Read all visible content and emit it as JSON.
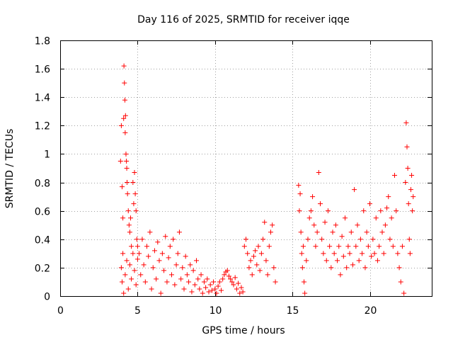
{
  "chart_data": {
    "type": "scatter",
    "title": "Day 116 of 2025, SRMTID for receiver iqqe",
    "xlabel": "GPS time / hours",
    "ylabel": "SRMTID / TECUs",
    "xlim": [
      0,
      24
    ],
    "ylim": [
      0,
      1.8
    ],
    "x_ticks": [
      0,
      5,
      10,
      15,
      20
    ],
    "x_tick_labels": [
      "0",
      "5",
      "10",
      "15",
      "20"
    ],
    "y_ticks": [
      0,
      0.2,
      0.4,
      0.6,
      0.8,
      1.0,
      1.2,
      1.4,
      1.6,
      1.8
    ],
    "y_tick_labels": [
      "0",
      "0.2",
      "0.4",
      "0.6",
      "0.8",
      "1",
      "1.2",
      "1.4",
      "1.6",
      "1.8"
    ],
    "grid": true,
    "marker": "plus",
    "color": "#ff0000",
    "series": [
      {
        "name": "SRMTID",
        "points": [
          [
            3.9,
            0.95
          ],
          [
            3.95,
            1.2
          ],
          [
            4.0,
            0.77
          ],
          [
            4.05,
            0.55
          ],
          [
            4.1,
            1.25
          ],
          [
            4.12,
            1.62
          ],
          [
            4.15,
            1.5
          ],
          [
            4.18,
            1.38
          ],
          [
            4.2,
            1.15
          ],
          [
            4.22,
            1.27
          ],
          [
            4.25,
            1.0
          ],
          [
            4.28,
            0.95
          ],
          [
            4.3,
            0.9
          ],
          [
            4.32,
            0.8
          ],
          [
            4.35,
            0.72
          ],
          [
            4.4,
            0.6
          ],
          [
            4.45,
            0.5
          ],
          [
            4.5,
            0.45
          ],
          [
            4.55,
            0.55
          ],
          [
            4.6,
            0.35
          ],
          [
            4.7,
            0.8
          ],
          [
            4.75,
            0.65
          ],
          [
            4.8,
            0.87
          ],
          [
            4.85,
            0.72
          ],
          [
            4.9,
            0.6
          ],
          [
            4.95,
            0.4
          ],
          [
            5.0,
            0.35
          ],
          [
            3.95,
            0.2
          ],
          [
            4.0,
            0.1
          ],
          [
            4.05,
            0.3
          ],
          [
            4.1,
            0.02
          ],
          [
            4.2,
            0.15
          ],
          [
            4.3,
            0.25
          ],
          [
            4.4,
            0.05
          ],
          [
            4.5,
            0.22
          ],
          [
            4.6,
            0.12
          ],
          [
            4.7,
            0.3
          ],
          [
            4.8,
            0.18
          ],
          [
            4.9,
            0.08
          ],
          [
            5.0,
            0.26
          ],
          [
            5.1,
            0.3
          ],
          [
            5.2,
            0.15
          ],
          [
            5.3,
            0.4
          ],
          [
            5.4,
            0.22
          ],
          [
            5.5,
            0.1
          ],
          [
            5.6,
            0.35
          ],
          [
            5.7,
            0.28
          ],
          [
            5.8,
            0.45
          ],
          [
            5.9,
            0.05
          ],
          [
            6.0,
            0.2
          ],
          [
            6.1,
            0.32
          ],
          [
            6.2,
            0.12
          ],
          [
            6.3,
            0.38
          ],
          [
            6.4,
            0.25
          ],
          [
            6.5,
            0.02
          ],
          [
            6.6,
            0.3
          ],
          [
            6.7,
            0.18
          ],
          [
            6.8,
            0.42
          ],
          [
            6.9,
            0.1
          ],
          [
            7.0,
            0.27
          ],
          [
            7.1,
            0.35
          ],
          [
            7.2,
            0.15
          ],
          [
            7.3,
            0.4
          ],
          [
            7.4,
            0.08
          ],
          [
            7.5,
            0.22
          ],
          [
            7.6,
            0.3
          ],
          [
            7.7,
            0.45
          ],
          [
            7.8,
            0.12
          ],
          [
            7.9,
            0.2
          ],
          [
            8.0,
            0.05
          ],
          [
            8.1,
            0.28
          ],
          [
            8.2,
            0.15
          ],
          [
            8.3,
            0.1
          ],
          [
            8.4,
            0.22
          ],
          [
            8.5,
            0.03
          ],
          [
            8.6,
            0.18
          ],
          [
            8.7,
            0.08
          ],
          [
            8.8,
            0.25
          ],
          [
            8.9,
            0.12
          ],
          [
            9.0,
            0.05
          ],
          [
            9.1,
            0.15
          ],
          [
            9.2,
            0.02
          ],
          [
            9.3,
            0.1
          ],
          [
            9.4,
            0.06
          ],
          [
            9.5,
            0.12
          ],
          [
            9.6,
            0.03
          ],
          [
            9.7,
            0.08
          ],
          [
            9.8,
            0.04
          ],
          [
            9.9,
            0.1
          ],
          [
            10.0,
            0.05
          ],
          [
            10.1,
            0.02
          ],
          [
            10.2,
            0.07
          ],
          [
            10.3,
            0.1
          ],
          [
            10.4,
            0.04
          ],
          [
            10.5,
            0.12
          ],
          [
            10.6,
            0.15
          ],
          [
            10.7,
            0.17
          ],
          [
            10.8,
            0.18
          ],
          [
            10.9,
            0.14
          ],
          [
            11.0,
            0.12
          ],
          [
            11.1,
            0.1
          ],
          [
            11.2,
            0.08
          ],
          [
            11.3,
            0.13
          ],
          [
            11.4,
            0.05
          ],
          [
            11.5,
            0.09
          ],
          [
            11.6,
            0.02
          ],
          [
            11.7,
            0.06
          ],
          [
            11.8,
            0.03
          ],
          [
            11.9,
            0.35
          ],
          [
            12.0,
            0.4
          ],
          [
            12.1,
            0.3
          ],
          [
            12.2,
            0.2
          ],
          [
            12.3,
            0.25
          ],
          [
            12.4,
            0.15
          ],
          [
            12.5,
            0.28
          ],
          [
            12.6,
            0.32
          ],
          [
            12.7,
            0.22
          ],
          [
            12.8,
            0.35
          ],
          [
            12.9,
            0.18
          ],
          [
            13.0,
            0.3
          ],
          [
            13.1,
            0.4
          ],
          [
            13.2,
            0.52
          ],
          [
            13.3,
            0.25
          ],
          [
            13.4,
            0.15
          ],
          [
            13.5,
            0.35
          ],
          [
            13.6,
            0.45
          ],
          [
            13.7,
            0.5
          ],
          [
            13.8,
            0.2
          ],
          [
            13.9,
            0.1
          ],
          [
            15.4,
            0.78
          ],
          [
            15.45,
            0.6
          ],
          [
            15.5,
            0.72
          ],
          [
            15.55,
            0.45
          ],
          [
            15.6,
            0.3
          ],
          [
            15.65,
            0.2
          ],
          [
            15.7,
            0.35
          ],
          [
            15.75,
            0.1
          ],
          [
            15.8,
            0.02
          ],
          [
            15.9,
            0.25
          ],
          [
            16.0,
            0.4
          ],
          [
            16.1,
            0.55
          ],
          [
            16.2,
            0.6
          ],
          [
            16.3,
            0.7
          ],
          [
            16.4,
            0.5
          ],
          [
            16.5,
            0.35
          ],
          [
            16.6,
            0.45
          ],
          [
            16.7,
            0.87
          ],
          [
            16.8,
            0.65
          ],
          [
            16.9,
            0.4
          ],
          [
            17.0,
            0.3
          ],
          [
            17.1,
            0.52
          ],
          [
            17.2,
            0.25
          ],
          [
            17.3,
            0.6
          ],
          [
            17.4,
            0.35
          ],
          [
            17.5,
            0.2
          ],
          [
            17.6,
            0.45
          ],
          [
            17.7,
            0.3
          ],
          [
            17.8,
            0.5
          ],
          [
            17.9,
            0.25
          ],
          [
            18.0,
            0.35
          ],
          [
            18.1,
            0.15
          ],
          [
            18.2,
            0.42
          ],
          [
            18.3,
            0.28
          ],
          [
            18.4,
            0.55
          ],
          [
            18.5,
            0.2
          ],
          [
            18.6,
            0.35
          ],
          [
            18.7,
            0.3
          ],
          [
            18.8,
            0.45
          ],
          [
            18.9,
            0.22
          ],
          [
            19.0,
            0.75
          ],
          [
            19.1,
            0.35
          ],
          [
            19.2,
            0.5
          ],
          [
            19.3,
            0.25
          ],
          [
            19.4,
            0.4
          ],
          [
            19.5,
            0.3
          ],
          [
            19.6,
            0.6
          ],
          [
            19.7,
            0.2
          ],
          [
            19.8,
            0.45
          ],
          [
            19.9,
            0.35
          ],
          [
            20.0,
            0.65
          ],
          [
            20.1,
            0.28
          ],
          [
            20.2,
            0.4
          ],
          [
            20.3,
            0.3
          ],
          [
            20.4,
            0.55
          ],
          [
            20.5,
            0.25
          ],
          [
            20.6,
            0.35
          ],
          [
            20.7,
            0.6
          ],
          [
            20.8,
            0.45
          ],
          [
            20.9,
            0.3
          ],
          [
            21.0,
            0.5
          ],
          [
            21.1,
            0.62
          ],
          [
            21.2,
            0.7
          ],
          [
            21.3,
            0.4
          ],
          [
            21.4,
            0.55
          ],
          [
            21.5,
            0.35
          ],
          [
            21.6,
            0.85
          ],
          [
            21.7,
            0.6
          ],
          [
            21.8,
            0.3
          ],
          [
            21.9,
            0.2
          ],
          [
            22.0,
            0.1
          ],
          [
            22.1,
            0.35
          ],
          [
            22.2,
            0.02
          ],
          [
            22.3,
            0.8
          ],
          [
            22.35,
            1.22
          ],
          [
            22.4,
            1.05
          ],
          [
            22.45,
            0.9
          ],
          [
            22.5,
            0.65
          ],
          [
            22.55,
            0.4
          ],
          [
            22.6,
            0.3
          ],
          [
            22.65,
            0.75
          ],
          [
            22.7,
            0.85
          ],
          [
            22.75,
            0.6
          ],
          [
            22.8,
            0.7
          ]
        ]
      }
    ]
  }
}
